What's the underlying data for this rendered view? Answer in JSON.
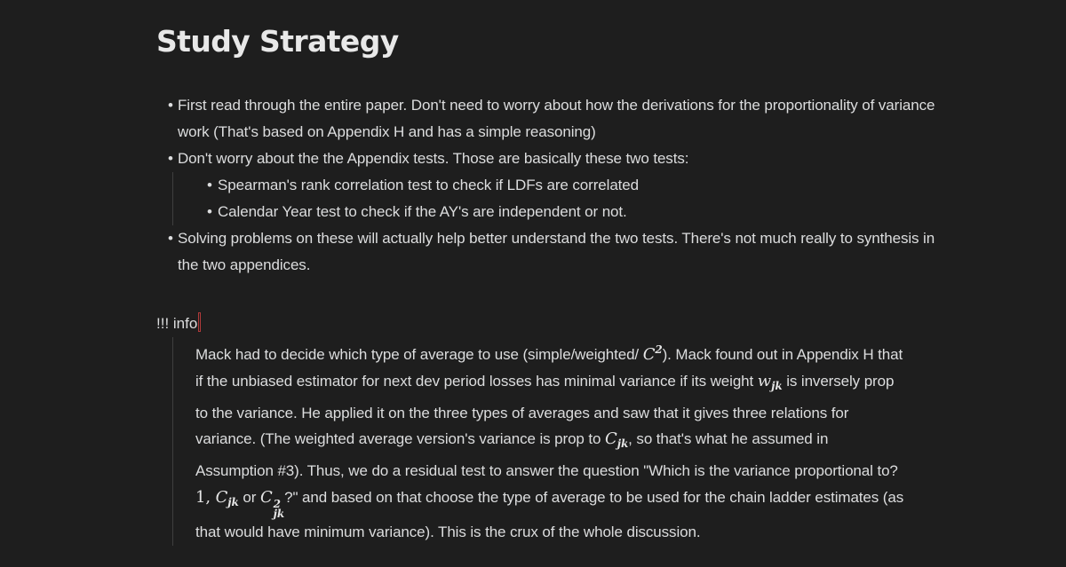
{
  "heading": "Study Strategy",
  "bullets": [
    "First read through the entire paper. Don't need to worry about how the derivations for the proportionality of variance work (That's based on Appendix H and has a simple reasoning)",
    "Don't worry about the the Appendix tests. Those are basically these two tests:",
    "Solving problems on these will actually help better understand the two tests. There's not much really to synthesis in the two appendices."
  ],
  "sub_bullets": [
    "Spearman's rank correlation test to check if LDFs are correlated",
    "Calendar Year test to check if the AY's are independent or not."
  ],
  "admonition": {
    "header": "!!! info",
    "text": {
      "p1": "Mack had to decide which type of average to use (simple/weighted/ ",
      "m1_base": "C",
      "m1_sup": "2",
      "p2": "). Mack found out in Appendix H that if the unbiased estimator for next dev period losses has minimal variance if its weight ",
      "m2_base": "w",
      "m2_sub": "jk",
      "p3": " is inversely prop to the variance. He applied it on the three types of averages and saw that it gives three relations for variance. (The weighted average version's variance is prop to ",
      "m3_base": "C",
      "m3_sub": "jk",
      "p4": ", so that's what he assumed in Assumption #3). Thus, we do a residual test to answer the question \"Which is the variance proportional to? ",
      "m4_one": "1,",
      "m4_base": "C",
      "m4_sub": "jk",
      "p5": " or ",
      "m5_base": "C",
      "m5_sup": "2",
      "m5_sub": "jk",
      "p6": "?\" and based on that choose the type of average to be used for the chain ladder estimates (as that would have minimum variance). This is the crux of the whole discussion."
    }
  }
}
